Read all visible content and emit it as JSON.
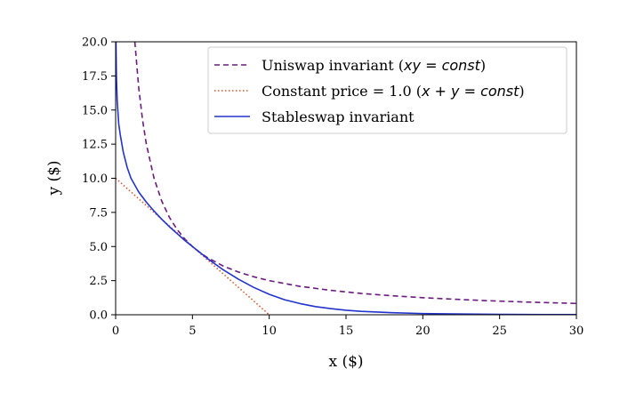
{
  "chart_data": {
    "type": "line",
    "xlabel": "x ($)",
    "ylabel": "y ($)",
    "xlim": [
      0,
      30
    ],
    "ylim": [
      0,
      20
    ],
    "xticks": [
      0,
      5,
      10,
      15,
      20,
      25,
      30
    ],
    "xtick_labels": [
      "0",
      "5",
      "10",
      "15",
      "20",
      "25",
      "30"
    ],
    "yticks": [
      0,
      2.5,
      5,
      7.5,
      10,
      12.5,
      15,
      17.5,
      20
    ],
    "ytick_labels": [
      "0.0",
      "2.5",
      "5.0",
      "7.5",
      "10.0",
      "12.5",
      "15.0",
      "17.5",
      "20.0"
    ],
    "legend_position": "top-right",
    "series": [
      {
        "name": "uniswap",
        "legend_prefix": "Uniswap invariant (",
        "legend_math": "xy = const",
        "legend_suffix": ")",
        "color": "#6a1b7e",
        "dash": "dashed",
        "x": [
          1.25,
          1.5,
          1.75,
          2,
          2.5,
          3,
          3.5,
          4,
          4.5,
          5,
          5.5,
          6,
          7,
          8,
          9,
          10,
          12,
          14,
          16,
          18,
          20,
          22,
          24,
          26,
          28,
          30
        ],
        "y": [
          20,
          16.67,
          14.29,
          12.5,
          10,
          8.33,
          7.14,
          6.25,
          5.56,
          5,
          4.55,
          4.17,
          3.57,
          3.13,
          2.78,
          2.5,
          2.08,
          1.79,
          1.56,
          1.39,
          1.25,
          1.14,
          1.04,
          0.96,
          0.89,
          0.83
        ]
      },
      {
        "name": "constant-price",
        "legend_prefix": "Constant price = 1.0 (",
        "legend_math": "x + y = const",
        "legend_suffix": ")",
        "color": "#d45a2a",
        "dash": "dotted",
        "x": [
          0,
          10
        ],
        "y": [
          10,
          0
        ]
      },
      {
        "name": "stableswap",
        "legend_prefix": "Stableswap invariant",
        "legend_math": "",
        "legend_suffix": "",
        "color": "#2233cc",
        "dash": "solid",
        "x": [
          0.02,
          0.05,
          0.1,
          0.2,
          0.3,
          0.5,
          0.75,
          1,
          1.5,
          2,
          2.5,
          3,
          3.5,
          4,
          4.5,
          5,
          5.5,
          6,
          7,
          8,
          9,
          10,
          11,
          12,
          13,
          14,
          15,
          16,
          18,
          20,
          22,
          25,
          28,
          30
        ],
        "y": [
          20,
          17.5,
          15.7,
          14,
          13.2,
          11.9,
          10.8,
          10.0,
          9.0,
          8.25,
          7.6,
          7.0,
          6.45,
          5.95,
          5.45,
          5.0,
          4.55,
          4.1,
          3.3,
          2.6,
          2.0,
          1.5,
          1.1,
          0.82,
          0.6,
          0.45,
          0.33,
          0.25,
          0.15,
          0.09,
          0.06,
          0.03,
          0.015,
          0.01
        ]
      }
    ]
  }
}
